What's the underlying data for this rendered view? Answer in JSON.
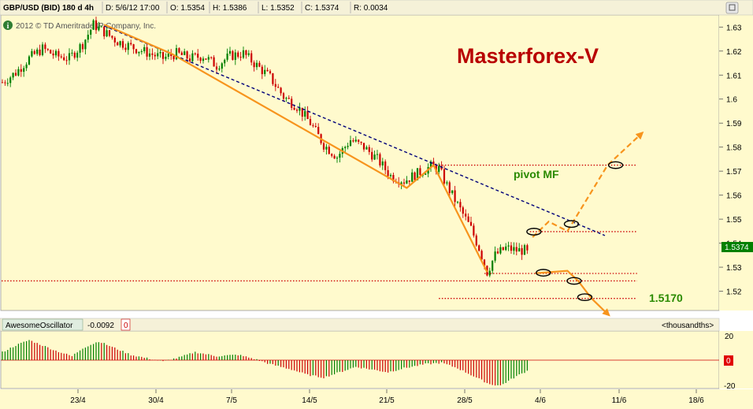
{
  "header": {
    "symbol": "GBP/USD (BID) 180 d 4h",
    "fields": [
      "D: 5/6/12 17:00",
      "O: 1.5354",
      "H: 1.5386",
      "L: 1.5352",
      "C: 1.5374",
      "R: 0.0034"
    ]
  },
  "copyright": "2012 © TD Ameritrade IP Company, Inc.",
  "watermark": "Masterforex-V",
  "colors": {
    "background": "#fffacd",
    "up_candle": "#008000",
    "down_candle": "#cc0000",
    "trend_orange": "#f7941d",
    "trend_dashed": "#00007a",
    "pivot_line": "#cc0000",
    "watermark": "#b80000",
    "annotation_green": "#2a8a00",
    "last_price_bg": "#008000"
  },
  "annotations": {
    "pivot_label": "pivot MF",
    "target_label": "1.5170"
  },
  "last_price": "1.5374",
  "oscillator": {
    "name": "AwesomeOscillator",
    "value": "-0.0092",
    "zero_badge": "0",
    "units": "<thousandths>",
    "axis_top": "20",
    "axis_zero": "0",
    "axis_bottom": "-20"
  },
  "chart_data": [
    {
      "type": "candlestick",
      "title": "GBP/USD (BID) 180 d 4h",
      "x_tick_labels": [
        "23/4",
        "30/4",
        "7/5",
        "14/5",
        "21/5",
        "28/5",
        "4/6",
        "11/6",
        "18/6"
      ],
      "y_tick_labels": [
        "1.63",
        "1.62",
        "1.61",
        "1.6",
        "1.59",
        "1.58",
        "1.57",
        "1.56",
        "1.55",
        "1.54",
        "1.53",
        "1.52"
      ],
      "ylim": [
        1.512,
        1.635
      ],
      "price_path": [
        [
          0,
          1.607
        ],
        [
          5,
          1.611
        ],
        [
          10,
          1.617
        ],
        [
          15,
          1.621
        ],
        [
          20,
          1.618
        ],
        [
          25,
          1.617
        ],
        [
          30,
          1.623
        ],
        [
          34,
          1.631
        ],
        [
          38,
          1.628
        ],
        [
          43,
          1.624
        ],
        [
          50,
          1.621
        ],
        [
          55,
          1.619
        ],
        [
          60,
          1.617
        ],
        [
          65,
          1.619
        ],
        [
          70,
          1.617
        ],
        [
          75,
          1.618
        ],
        [
          80,
          1.614
        ],
        [
          85,
          1.618
        ],
        [
          90,
          1.619
        ],
        [
          95,
          1.614
        ],
        [
          100,
          1.609
        ],
        [
          105,
          1.601
        ],
        [
          110,
          1.597
        ],
        [
          115,
          1.59
        ],
        [
          120,
          1.581
        ],
        [
          125,
          1.576
        ],
        [
          130,
          1.583
        ],
        [
          135,
          1.58
        ],
        [
          140,
          1.575
        ],
        [
          145,
          1.568
        ],
        [
          150,
          1.566
        ],
        [
          155,
          1.569
        ],
        [
          160,
          1.572
        ],
        [
          163,
          1.571
        ],
        [
          166,
          1.564
        ],
        [
          170,
          1.556
        ],
        [
          175,
          1.546
        ],
        [
          178,
          1.538
        ],
        [
          181,
          1.528
        ],
        [
          184,
          1.535
        ],
        [
          188,
          1.538
        ],
        [
          192,
          1.537
        ],
        [
          196,
          1.537
        ]
      ],
      "support_levels": [
        1.5725,
        1.5448,
        1.5274,
        1.5243,
        1.517
      ]
    },
    {
      "type": "bar",
      "title": "AwesomeOscillator",
      "ylim": [
        -20,
        20
      ],
      "units": "<thousandths>",
      "histogram_path": [
        [
          0,
          6
        ],
        [
          5,
          11
        ],
        [
          10,
          15
        ],
        [
          15,
          11
        ],
        [
          20,
          7
        ],
        [
          26,
          3
        ],
        [
          30,
          9
        ],
        [
          36,
          14
        ],
        [
          42,
          9
        ],
        [
          48,
          4
        ],
        [
          55,
          1
        ],
        [
          60,
          -1
        ],
        [
          66,
          2
        ],
        [
          72,
          6
        ],
        [
          80,
          3
        ],
        [
          88,
          4
        ],
        [
          94,
          1
        ],
        [
          100,
          -3
        ],
        [
          108,
          -7
        ],
        [
          114,
          -11
        ],
        [
          120,
          -13
        ],
        [
          126,
          -9
        ],
        [
          132,
          -5
        ],
        [
          138,
          -7
        ],
        [
          144,
          -9
        ],
        [
          150,
          -6
        ],
        [
          158,
          -3
        ],
        [
          164,
          -2
        ],
        [
          170,
          -6
        ],
        [
          176,
          -12
        ],
        [
          182,
          -18
        ],
        [
          186,
          -19
        ],
        [
          192,
          -12
        ],
        [
          196,
          -8
        ]
      ]
    }
  ]
}
